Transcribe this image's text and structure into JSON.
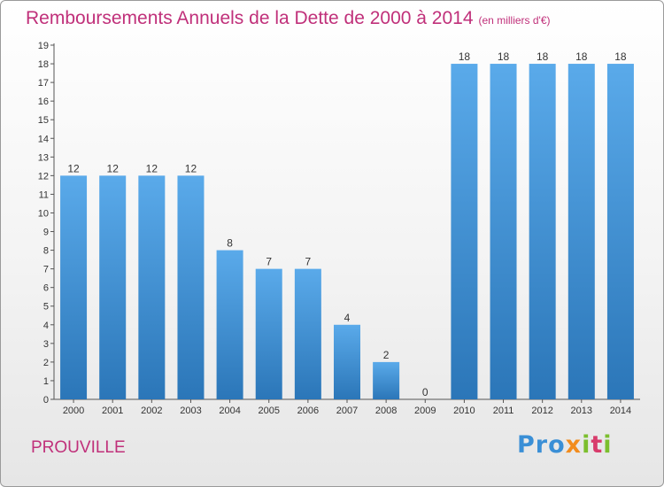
{
  "header": {
    "title": "Remboursements Annuels de la Dette de 2000 à 2014",
    "unit": "(en milliers d'€)"
  },
  "footer": {
    "location": "PROUVILLE",
    "logo": "Proxiti"
  },
  "colors": {
    "title": "#c0307a",
    "bar_light": "#5aaaea",
    "bar_dark": "#2e7bbf"
  },
  "chart_data": {
    "type": "bar",
    "title": "Remboursements Annuels de la Dette de 2000 à 2014",
    "categories": [
      "2000",
      "2001",
      "2002",
      "2003",
      "2004",
      "2005",
      "2006",
      "2007",
      "2008",
      "2009",
      "2010",
      "2011",
      "2012",
      "2013",
      "2014"
    ],
    "values": [
      12,
      12,
      12,
      12,
      8,
      7,
      7,
      4,
      2,
      0,
      18,
      18,
      18,
      18,
      18
    ],
    "ylim": [
      0,
      19
    ],
    "yticks": [
      0,
      1,
      2,
      3,
      4,
      5,
      6,
      7,
      8,
      9,
      10,
      11,
      12,
      13,
      14,
      15,
      16,
      17,
      18,
      19
    ],
    "xlabel": "",
    "ylabel": "",
    "grid": false,
    "legend": "none"
  }
}
